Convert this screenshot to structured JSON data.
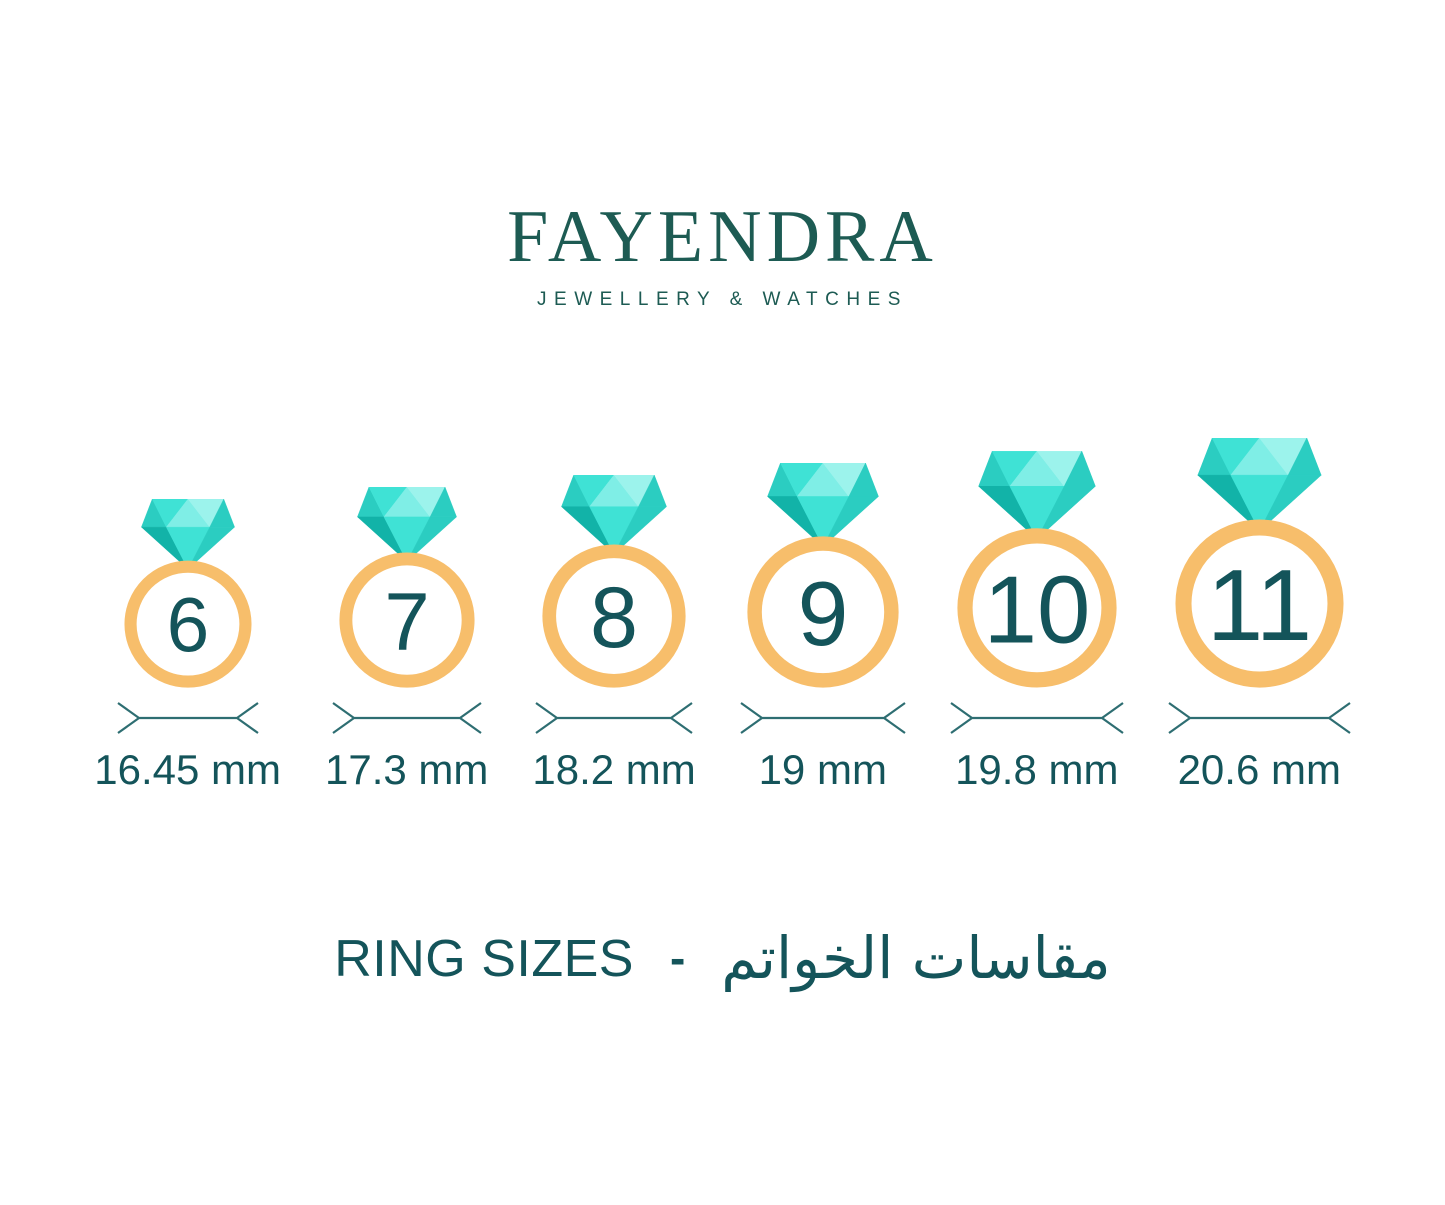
{
  "brand": {
    "name": "FAYENDRA",
    "tagline": "JEWELLERY & WATCHES"
  },
  "footer": {
    "title_en": "RING SIZES",
    "separator": "-",
    "title_ar": "مقاسات الخواتم"
  },
  "colors": {
    "background": "#ffffff",
    "brand_teal": "#1d5b53",
    "text_teal": "#14545a",
    "line_teal": "#2e6e72",
    "band_orange": "#f7be6b",
    "diamond_dark": "#12b3a8",
    "diamond_medium": "#2bcdc1",
    "diamond_bright": "#3fe2d5",
    "diamond_light": "#7feee6",
    "diamond_lighter": "#9cf3ec"
  },
  "rings": [
    {
      "size": "6",
      "diameter": "16.45 mm"
    },
    {
      "size": "7",
      "diameter": "17.3 mm"
    },
    {
      "size": "8",
      "diameter": "18.2 mm"
    },
    {
      "size": "9",
      "diameter": "19 mm"
    },
    {
      "size": "10",
      "diameter": "19.8 mm"
    },
    {
      "size": "11",
      "diameter": "20.6 mm"
    }
  ]
}
